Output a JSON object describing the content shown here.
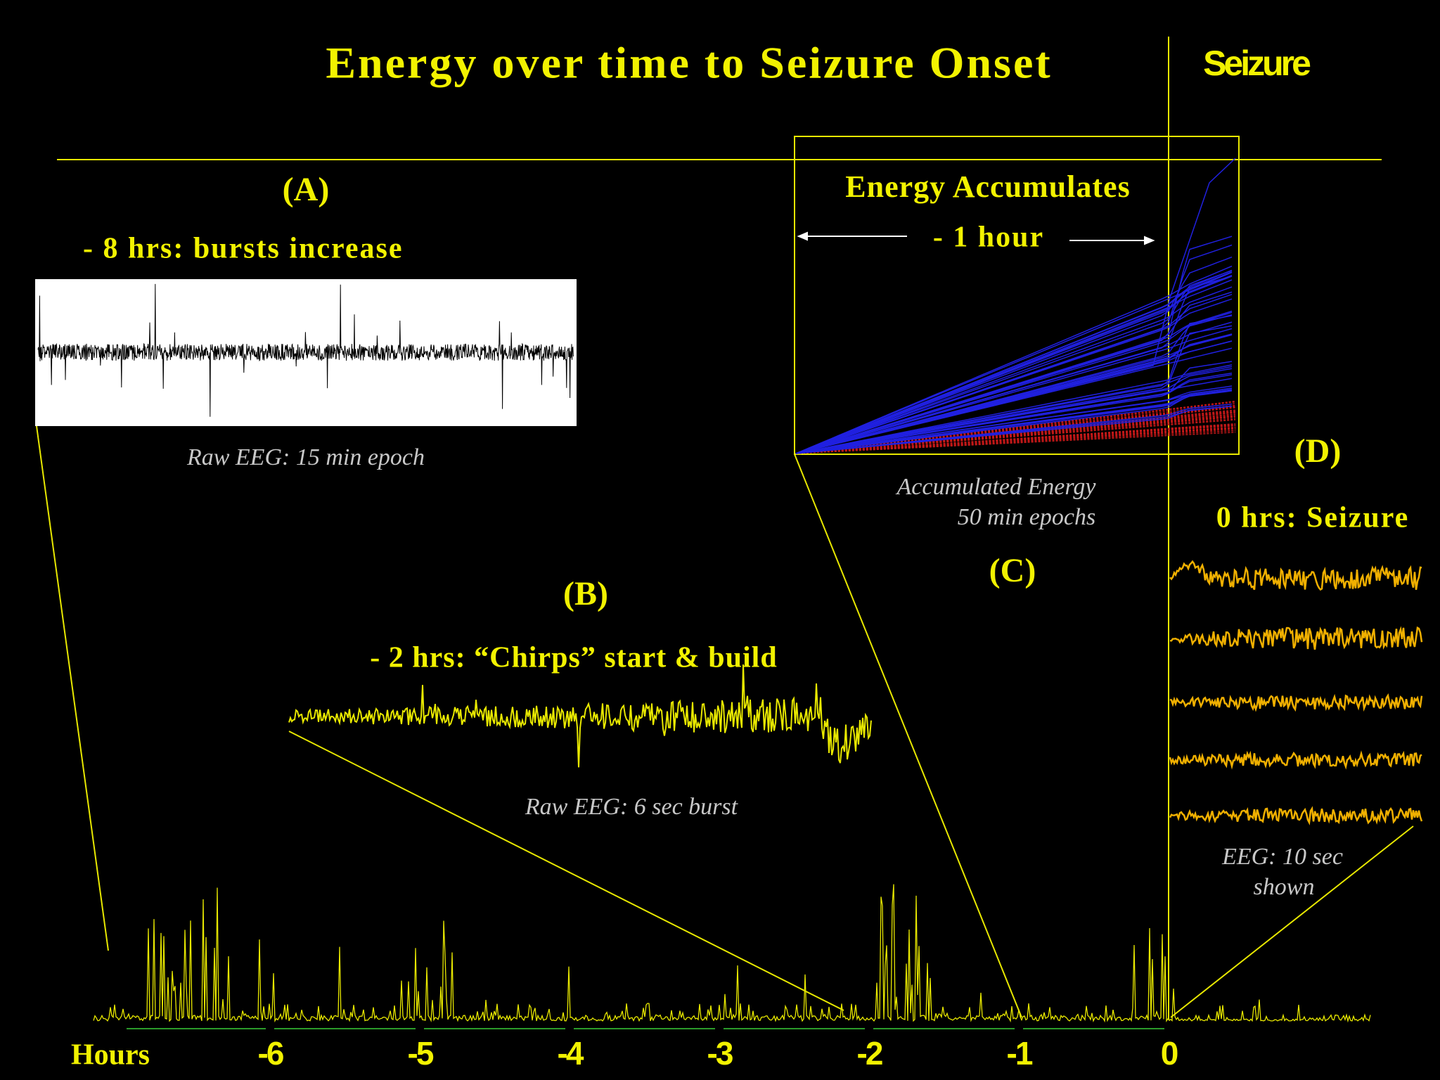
{
  "title": "Energy over time to Seizure Onset",
  "seizure_label": "Seizure",
  "panels": [
    {
      "label": "(A)",
      "heading": "- 8 hrs:  bursts increase",
      "caption": [
        "Raw EEG:  15 min epoch"
      ]
    },
    {
      "label": "(B)",
      "heading": "- 2 hrs: “Chirps” start & build",
      "caption": [
        "Raw EEG:  6 sec burst"
      ]
    },
    {
      "label": "(C)",
      "heading": "Energy Accumulates",
      "span": "- 1 hour",
      "caption": [
        "Accumulated Energy",
        "50 min epochs"
      ]
    },
    {
      "label": "(D)",
      "heading": "0 hrs: Seizure",
      "caption": [
        "EEG: 10 sec",
        "shown"
      ]
    }
  ],
  "axis": {
    "label": "Hours",
    "ticks": [
      -6,
      -5,
      -4,
      -3,
      -2,
      -1,
      0
    ]
  }
}
